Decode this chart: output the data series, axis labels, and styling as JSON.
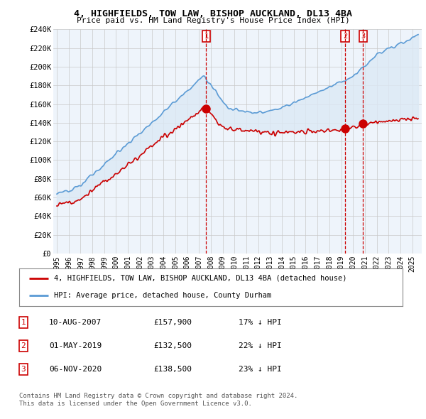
{
  "title": "4, HIGHFIELDS, TOW LAW, BISHOP AUCKLAND, DL13 4BA",
  "subtitle": "Price paid vs. HM Land Registry's House Price Index (HPI)",
  "ylim": [
    0,
    240000
  ],
  "yticks": [
    0,
    20000,
    40000,
    60000,
    80000,
    100000,
    120000,
    140000,
    160000,
    180000,
    200000,
    220000,
    240000
  ],
  "ytick_labels": [
    "£0",
    "£20K",
    "£40K",
    "£60K",
    "£80K",
    "£100K",
    "£120K",
    "£140K",
    "£160K",
    "£180K",
    "£200K",
    "£220K",
    "£240K"
  ],
  "hpi_color": "#5b9bd5",
  "price_color": "#cc0000",
  "fill_color": "#dce9f5",
  "vline_color": "#cc0000",
  "chart_bg": "#eef4fb",
  "transactions": [
    {
      "date_num": 2007.61,
      "price": 157900,
      "label": "1",
      "date_str": "10-AUG-2007",
      "pct": "17% ↓ HPI"
    },
    {
      "date_num": 2019.33,
      "price": 132500,
      "label": "2",
      "date_str": "01-MAY-2019",
      "pct": "22% ↓ HPI"
    },
    {
      "date_num": 2020.85,
      "price": 138500,
      "label": "3",
      "date_str": "06-NOV-2020",
      "pct": "23% ↓ HPI"
    }
  ],
  "legend_line1": "4, HIGHFIELDS, TOW LAW, BISHOP AUCKLAND, DL13 4BA (detached house)",
  "legend_line2": "HPI: Average price, detached house, County Durham",
  "footer1": "Contains HM Land Registry data © Crown copyright and database right 2024.",
  "footer2": "This data is licensed under the Open Government Licence v3.0.",
  "background_color": "#ffffff",
  "grid_color": "#c8c8c8",
  "xlim_left": 1994.7,
  "xlim_right": 2025.8
}
